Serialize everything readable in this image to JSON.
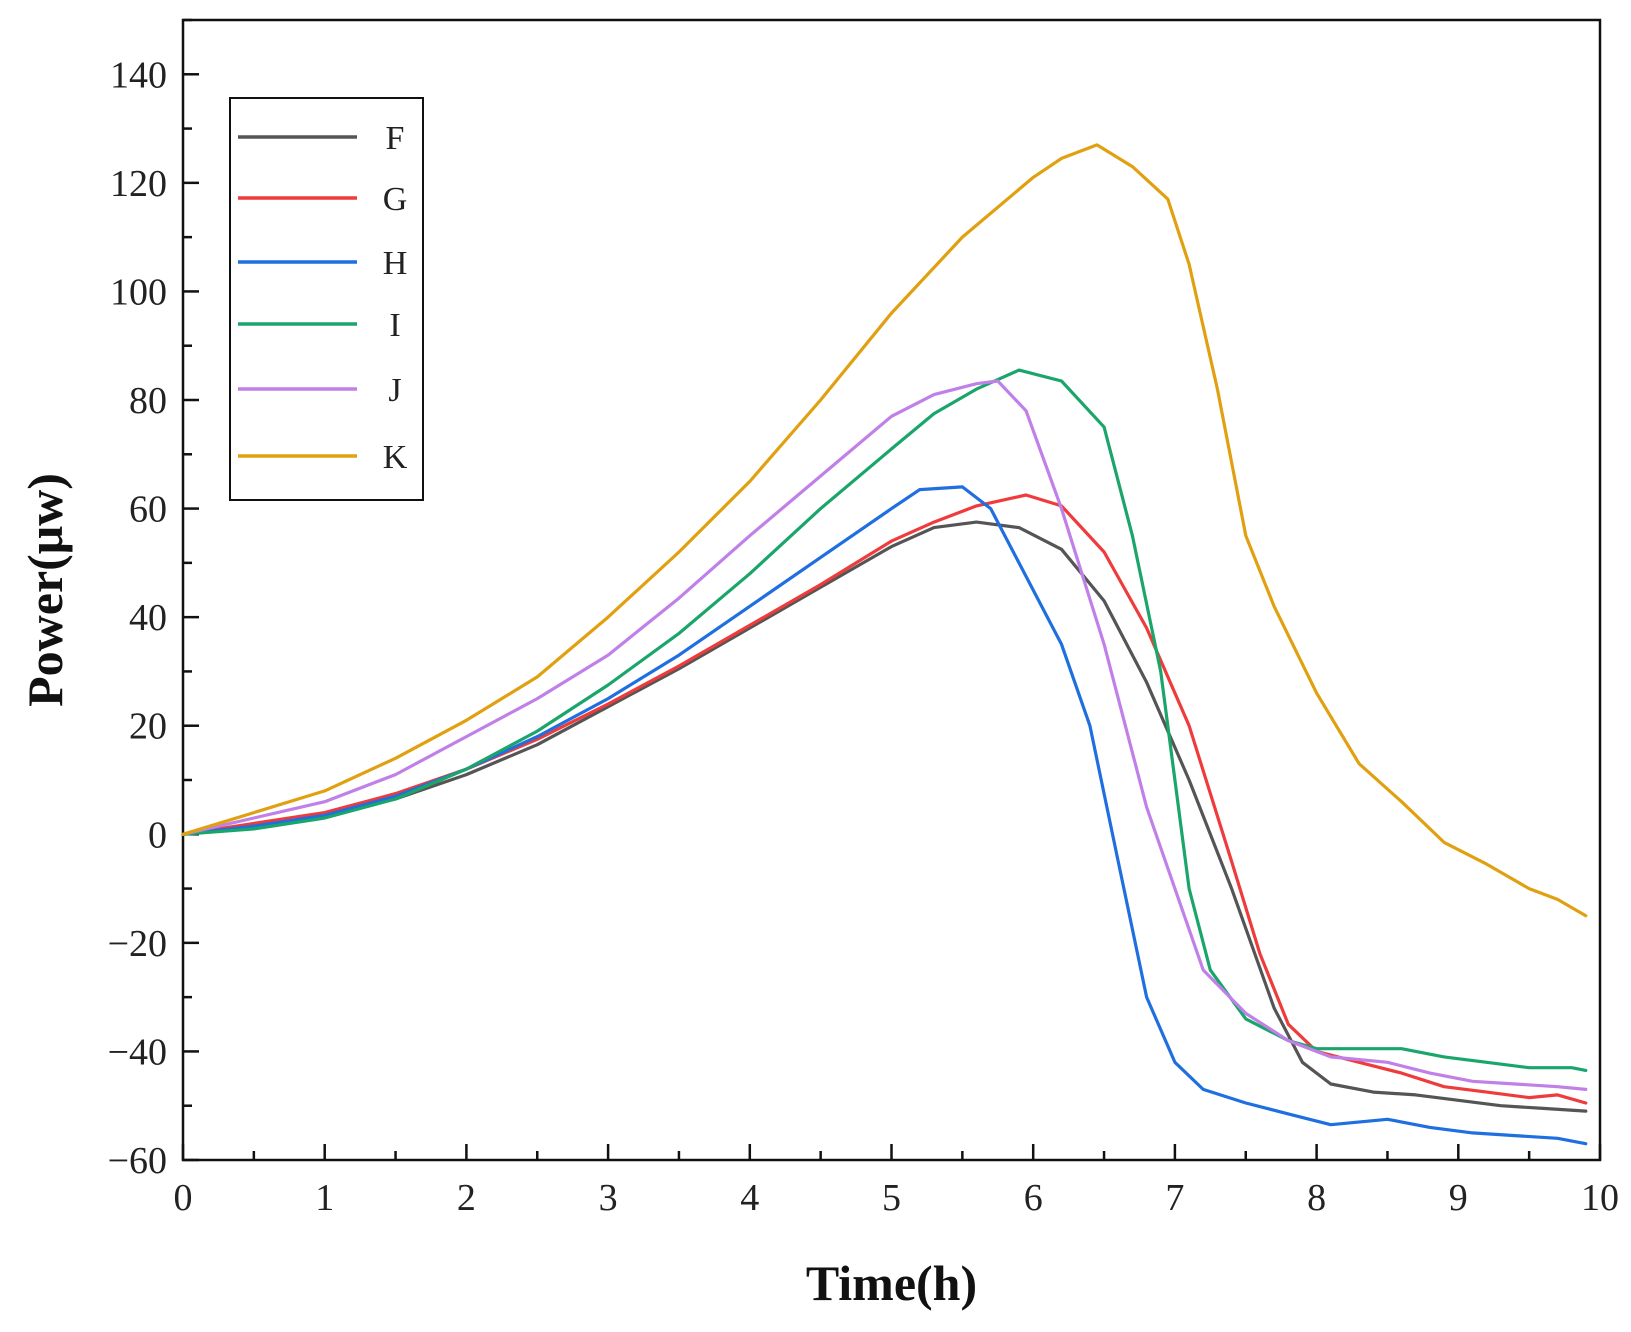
{
  "chart_data": {
    "type": "line",
    "title": "",
    "xlabel": "Time(h)",
    "ylabel": "Power(μw)",
    "xlim": [
      0,
      10
    ],
    "ylim": [
      -60,
      150
    ],
    "xticks": [
      0,
      1,
      2,
      3,
      4,
      5,
      6,
      7,
      8,
      9,
      10
    ],
    "xtick_labels": [
      "0",
      "1",
      "2",
      "3",
      "4",
      "5",
      "6",
      "7",
      "8",
      "9",
      "10"
    ],
    "yticks": [
      -60,
      -40,
      -20,
      0,
      20,
      40,
      60,
      80,
      100,
      120,
      140
    ],
    "ytick_labels": [
      "−60",
      "−40",
      "−20",
      "0",
      "20",
      "40",
      "60",
      "80",
      "100",
      "120",
      "140"
    ],
    "grid": false,
    "legend_position": "top-left",
    "series": [
      {
        "name": "F",
        "color": "#555555",
        "x": [
          0,
          0.5,
          1,
          1.5,
          2,
          2.5,
          3,
          3.5,
          4,
          4.5,
          5,
          5.3,
          5.6,
          5.9,
          6.2,
          6.5,
          6.8,
          7.1,
          7.4,
          7.7,
          7.9,
          8.1,
          8.4,
          8.7,
          9,
          9.3,
          9.6,
          9.9
        ],
        "y": [
          0,
          1.5,
          3.5,
          6.5,
          11,
          16.5,
          23.5,
          30.5,
          38,
          45.5,
          53,
          56.5,
          57.5,
          56.5,
          52.5,
          43,
          28,
          10,
          -10,
          -32,
          -42,
          -46,
          -47.5,
          -48,
          -49,
          -50,
          -50.5,
          -51
        ]
      },
      {
        "name": "G",
        "color": "#ef3b3b",
        "x": [
          0,
          0.5,
          1,
          1.5,
          2,
          2.5,
          3,
          3.5,
          4,
          4.5,
          5,
          5.3,
          5.6,
          5.95,
          6.2,
          6.5,
          6.8,
          7.1,
          7.4,
          7.6,
          7.8,
          8,
          8.3,
          8.6,
          8.9,
          9.2,
          9.5,
          9.7,
          9.9
        ],
        "y": [
          0,
          2,
          4,
          7.5,
          12,
          17.5,
          24,
          31,
          38.5,
          46,
          54,
          57.5,
          60.5,
          62.5,
          60.5,
          52,
          38,
          20,
          -5,
          -22,
          -35,
          -40,
          -42,
          -44,
          -46.5,
          -47.5,
          -48.5,
          -48,
          -49.5
        ]
      },
      {
        "name": "H",
        "color": "#1f6fe0",
        "x": [
          0,
          0.5,
          1,
          1.5,
          2,
          2.5,
          3,
          3.5,
          4,
          4.5,
          5,
          5.2,
          5.5,
          5.7,
          5.9,
          6.2,
          6.4,
          6.6,
          6.8,
          7,
          7.2,
          7.5,
          7.8,
          8.1,
          8.5,
          8.8,
          9.1,
          9.4,
          9.7,
          9.9
        ],
        "y": [
          0,
          1.5,
          3.5,
          7,
          12,
          18,
          25,
          33,
          42,
          51,
          60,
          63.5,
          64,
          60,
          50,
          35,
          20,
          -5,
          -30,
          -42,
          -47,
          -49.5,
          -51.5,
          -53.5,
          -52.5,
          -54,
          -55,
          -55.5,
          -56,
          -57
        ]
      },
      {
        "name": "I",
        "color": "#1aa56b",
        "x": [
          0,
          0.5,
          1,
          1.5,
          2,
          2.5,
          3,
          3.5,
          4,
          4.5,
          5,
          5.3,
          5.6,
          5.9,
          6.2,
          6.5,
          6.7,
          6.9,
          7,
          7.1,
          7.25,
          7.5,
          7.8,
          8,
          8.3,
          8.6,
          8.9,
          9.2,
          9.5,
          9.8,
          9.9
        ],
        "y": [
          0,
          1,
          3,
          6.5,
          12,
          19,
          27.5,
          37,
          48,
          60,
          71,
          77.5,
          82,
          85.5,
          83.5,
          75,
          55,
          30,
          10,
          -10,
          -25,
          -34,
          -38,
          -39.5,
          -39.5,
          -39.5,
          -41,
          -42,
          -43,
          -43,
          -43.5
        ]
      },
      {
        "name": "J",
        "color": "#c080e8",
        "x": [
          0,
          0.5,
          1,
          1.5,
          2,
          2.5,
          3,
          3.5,
          4,
          4.5,
          5,
          5.3,
          5.6,
          5.75,
          5.95,
          6.2,
          6.5,
          6.8,
          7,
          7.2,
          7.5,
          7.8,
          8.1,
          8.5,
          8.8,
          9.1,
          9.4,
          9.7,
          9.9
        ],
        "y": [
          0,
          3,
          6,
          11,
          18,
          25,
          33,
          43.5,
          55,
          66,
          77,
          81,
          83,
          83.5,
          78,
          60,
          35,
          5,
          -10,
          -25,
          -33,
          -38,
          -41,
          -42,
          -44,
          -45.5,
          -46,
          -46.5,
          -47
        ]
      },
      {
        "name": "K",
        "color": "#e0a010",
        "x": [
          0,
          0.5,
          1,
          1.5,
          2,
          2.5,
          3,
          3.5,
          4,
          4.5,
          5,
          5.5,
          6,
          6.2,
          6.45,
          6.7,
          6.95,
          7.1,
          7.3,
          7.5,
          7.7,
          8,
          8.3,
          8.6,
          8.9,
          9.2,
          9.5,
          9.7,
          9.9
        ],
        "y": [
          0,
          4,
          8,
          14,
          21,
          29,
          40,
          52,
          65,
          80,
          96,
          110,
          121,
          124.5,
          127,
          123,
          117,
          105,
          82,
          55,
          42,
          26,
          13,
          6,
          -1.5,
          -5.5,
          -10,
          -12,
          -15
        ]
      }
    ]
  }
}
